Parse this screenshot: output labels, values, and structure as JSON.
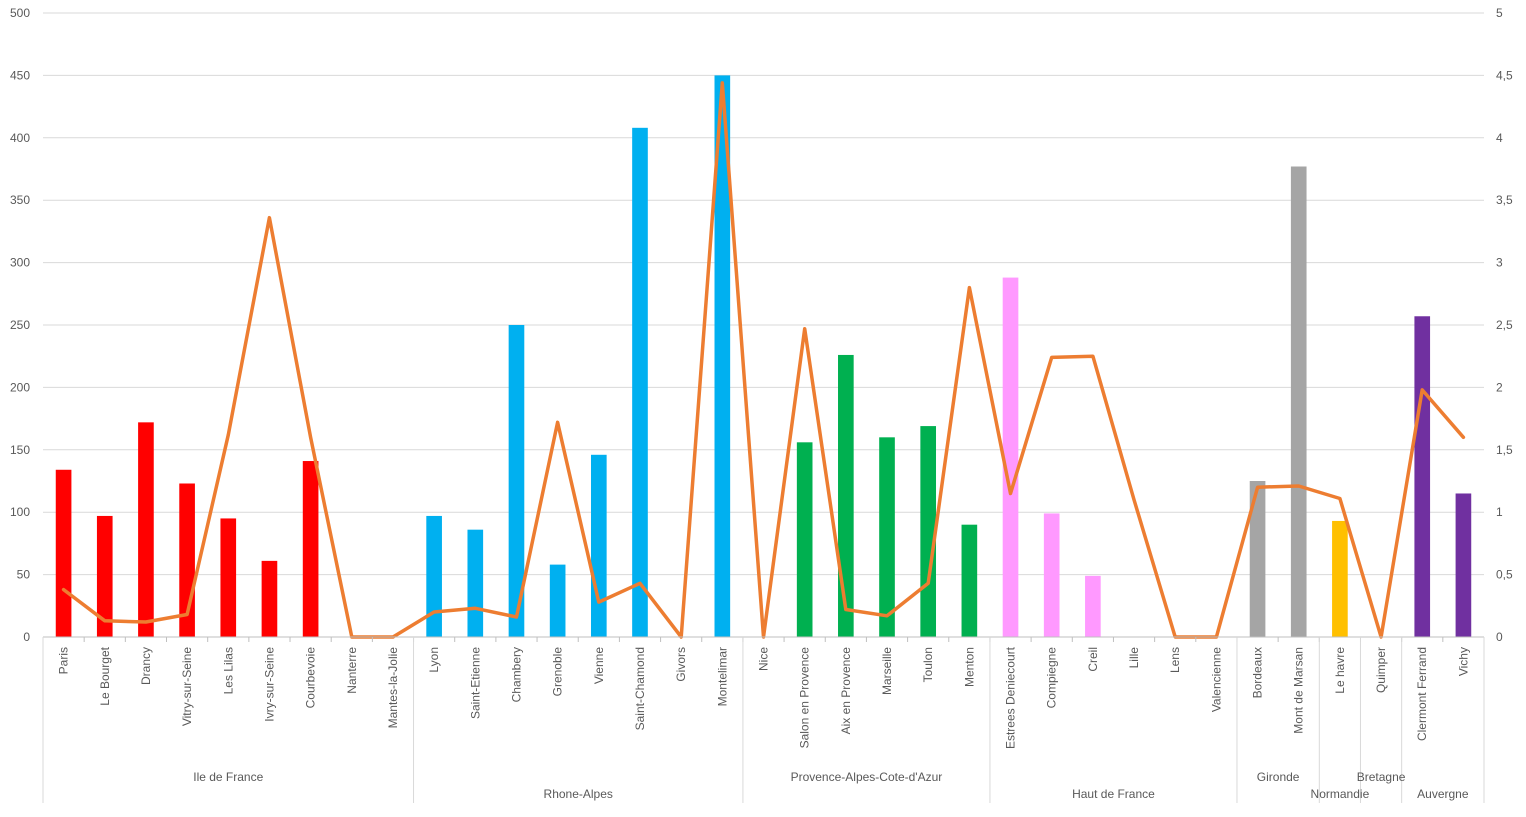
{
  "chart_data": {
    "type": "bar",
    "title": "",
    "xlabel": "",
    "ylabel": "",
    "ylim": [
      0,
      500
    ],
    "y2lim": [
      0,
      5
    ],
    "yticks": [
      "0",
      "50",
      "100",
      "150",
      "200",
      "250",
      "300",
      "350",
      "400",
      "450",
      "500"
    ],
    "y2ticks": [
      "0",
      "0,5",
      "1",
      "1,5",
      "2",
      "2,5",
      "3",
      "3,5",
      "4",
      "4,5",
      "5"
    ],
    "grid": true,
    "legend": "none",
    "colors": {
      "grid": "#d9d9d9",
      "axis": "#bfbfbf",
      "text": "#595959",
      "line": "#ed7d31"
    },
    "groups": [
      {
        "name": "Ile de France",
        "color": "#ff0000",
        "categories": [
          "Paris",
          "Le Bourget",
          "Drancy",
          "Vitry-sur-Seine",
          "Les Lilas",
          "Ivry-sur-Seine",
          "Courbevoie",
          "Nanterre",
          "Mantes-la-Jolie"
        ],
        "label_row": 1
      },
      {
        "name": "Rhone-Alpes",
        "color": "#00b0f0",
        "categories": [
          "Lyon",
          "Saint-Etienne",
          "Chambery",
          "Grenoble",
          "Vienne",
          "Saint-Chamond",
          "Givors",
          "Montelimar"
        ],
        "label_row": 2
      },
      {
        "name": "Provence-Alpes-Cote-d'Azur",
        "color": "#00b050",
        "categories": [
          "Nice",
          "Salon en Provence",
          "Aix en Provence",
          "Marseille",
          "Toulon",
          "Menton"
        ],
        "label_row": 1
      },
      {
        "name": "Haut de France",
        "color": "#ff99ff",
        "categories": [
          "Estrees Deniecourt",
          "Compiegne",
          "Creil",
          "Lille",
          "Lens",
          "Valencienne"
        ],
        "label_row": 2
      },
      {
        "name": "Gironde",
        "color": "#a5a5a5",
        "categories": [
          "Bordeaux",
          "Mont de Marsan"
        ],
        "label_row": 1
      },
      {
        "name": "Normandie",
        "color": "#ffc000",
        "categories": [
          "Le havre"
        ],
        "label_row": 2
      },
      {
        "name": "Bretagne",
        "color": "#ffc000",
        "categories": [
          "Quimper"
        ],
        "label_row": 1
      },
      {
        "name": "Auvergne",
        "color": "#7030a0",
        "categories": [
          "Clermont Ferrand",
          "Vichy"
        ],
        "label_row": 2
      }
    ],
    "series": [
      {
        "type": "bar",
        "axis": "left",
        "values": [
          134,
          97,
          172,
          123,
          95,
          61,
          141,
          0,
          0,
          97,
          86,
          250,
          58,
          146,
          408,
          0,
          450,
          0,
          156,
          226,
          160,
          169,
          90,
          288,
          99,
          49,
          0,
          0,
          0,
          125,
          377,
          93,
          0,
          257,
          115
        ]
      },
      {
        "type": "line",
        "axis": "right",
        "values": [
          0.38,
          0.13,
          0.12,
          0.18,
          1.62,
          3.36,
          1.6,
          0,
          0,
          0.2,
          0.23,
          0.16,
          1.72,
          0.28,
          0.43,
          0,
          4.44,
          0,
          2.47,
          0.22,
          0.17,
          0.43,
          2.8,
          1.15,
          2.24,
          2.25,
          1.1,
          0,
          0,
          1.2,
          1.21,
          1.11,
          0,
          1.98,
          1.6
        ]
      }
    ]
  }
}
